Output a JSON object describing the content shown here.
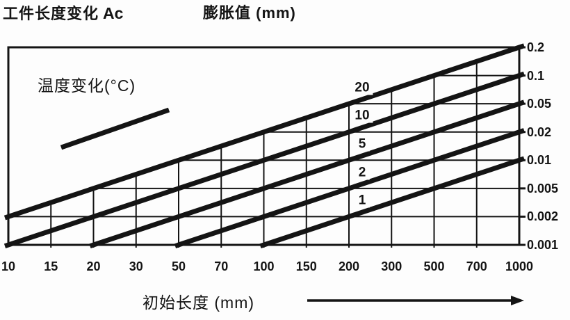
{
  "header": {
    "title_left_cn": "工件长度变化",
    "title_left_symbol": "Ac",
    "title_right": "膨胀值 (mm)"
  },
  "chart_data": {
    "type": "line",
    "title": "工件长度变化 Ac 膨胀值 (mm)",
    "x_axis": {
      "title": "初始长度 (mm)",
      "ticks": [
        "10",
        "15",
        "20",
        "30",
        "50",
        "70",
        "100",
        "150",
        "200",
        "300",
        "500",
        "700",
        "1000"
      ],
      "scale": "logarithmic-style, equal tick spacing",
      "range": [
        10,
        1000
      ]
    },
    "y_axis": {
      "title": "膨胀值 (mm)",
      "position": "right",
      "ticks": [
        "0.2",
        "0.1",
        "0.05",
        "0.02",
        "0.01",
        "0.005",
        "0.002",
        "0.001"
      ],
      "scale": "logarithmic-style, equal tick spacing",
      "range": [
        0.001,
        0.2
      ]
    },
    "legend": {
      "label": "温度变化(°C)",
      "position": "top-left inside plot"
    },
    "series": [
      {
        "name": "20",
        "start": {
          "x": 10,
          "y": 0.002
        },
        "end": {
          "x": 1000,
          "y": 0.2
        }
      },
      {
        "name": "10",
        "start": {
          "x": 10,
          "y": 0.001
        },
        "end": {
          "x": 1000,
          "y": 0.1
        }
      },
      {
        "name": "5",
        "start": {
          "x": 20,
          "y": 0.001
        },
        "end": {
          "x": 1000,
          "y": 0.05
        }
      },
      {
        "name": "2",
        "start": {
          "x": 50,
          "y": 0.001
        },
        "end": {
          "x": 1000,
          "y": 0.02
        }
      },
      {
        "name": "1",
        "start": {
          "x": 100,
          "y": 0.001
        },
        "end": {
          "x": 1000,
          "y": 0.01
        }
      }
    ],
    "grid": true,
    "ink_color": "#141414",
    "background": "#fdfdfd"
  }
}
